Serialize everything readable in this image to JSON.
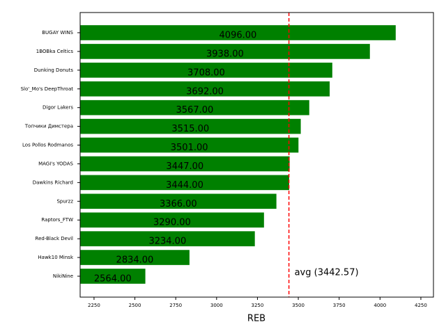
{
  "chart_data": {
    "type": "bar",
    "orientation": "horizontal",
    "xlabel": "REB",
    "categories": [
      "BUGAY WINS",
      "1BOBka Celtics",
      "Dunking Donuts",
      "Slo'_Mo's DeepThroat",
      "Digor Lakers",
      "Топчики Димстера",
      "Los Pollos Rodmanos",
      "MAGI's YODAS",
      "Dawkins Richard",
      "Spurzz",
      "Raptors_FTW",
      "Red-Black Devil",
      "Hawk10 Minsk",
      "NikiNine"
    ],
    "values": [
      4096,
      3938,
      3708,
      3692,
      3567,
      3515,
      3501,
      3447,
      3444,
      3366,
      3290,
      3234,
      2834,
      2564
    ],
    "value_labels": [
      "4096.00",
      "3938.00",
      "3708.00",
      "3692.00",
      "3567.00",
      "3515.00",
      "3501.00",
      "3447.00",
      "3444.00",
      "3366.00",
      "3290.00",
      "3234.00",
      "2834.00",
      "2564.00"
    ],
    "color": "#008000",
    "xlim": [
      2165,
      4327
    ],
    "xticks": [
      2250,
      2500,
      2750,
      3000,
      3250,
      3500,
      3750,
      4000,
      4250
    ],
    "avg": {
      "value": 3442.57,
      "label": "avg (3442.57)",
      "color": "#ff0000"
    }
  }
}
